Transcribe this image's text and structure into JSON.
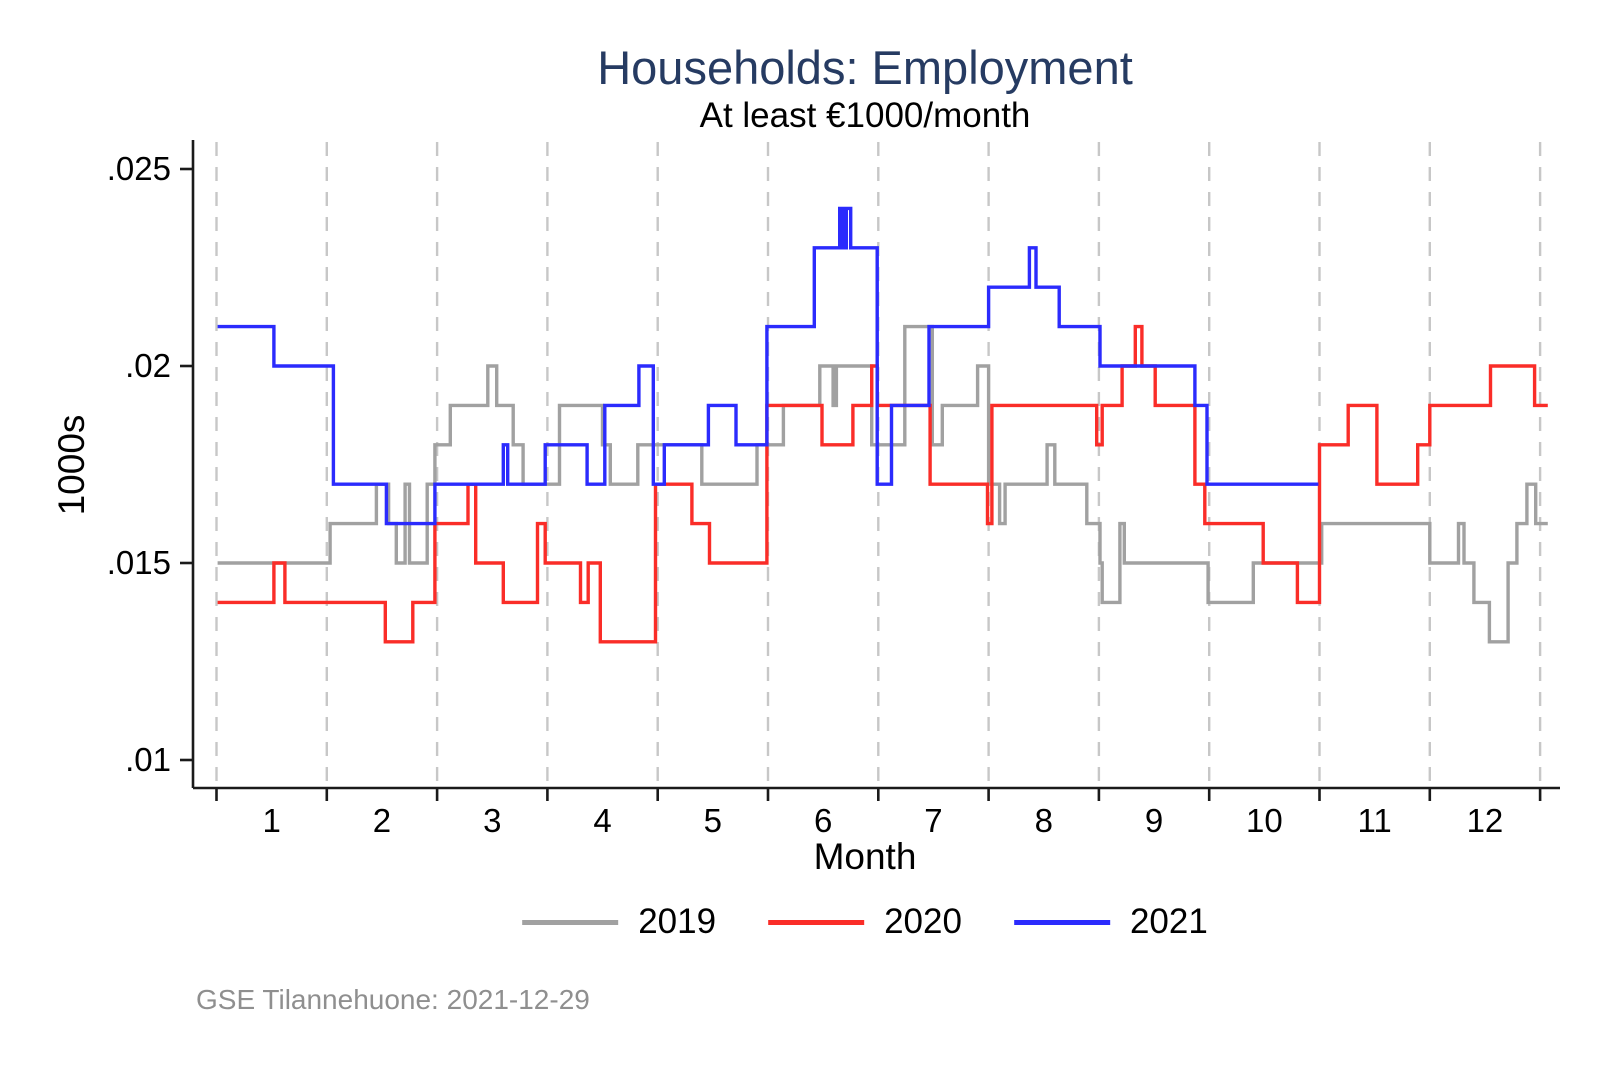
{
  "title": "Households: Employment",
  "subtitle": "At least €1000/month",
  "footer_note": "GSE Tilannehuone: 2021-12-29",
  "colors": {
    "title": "#263b62",
    "axis": "#1a1a1a",
    "gridline": "#c7c7c7",
    "footer": "#8f8f8f",
    "series_2019": "#a1a1a1",
    "series_2020": "#fa2d28",
    "series_2021": "#2b2bfd"
  },
  "legend": {
    "items": [
      {
        "label": "2019",
        "color": "#a1a1a1"
      },
      {
        "label": "2020",
        "color": "#fa2d28"
      },
      {
        "label": "2021",
        "color": "#2b2bfd"
      }
    ]
  },
  "chart_data": {
    "type": "line",
    "step": true,
    "title": "Households: Employment",
    "subtitle": "At least €1000/month",
    "xlabel": "Month",
    "ylabel": "1000s",
    "xlim": [
      0.28,
      12.75
    ],
    "ylim": [
      0.0095,
      0.0258
    ],
    "grid": "vertical-dashed",
    "legend_position": "bottom-center",
    "x_gridlines": [
      0.5,
      1.5,
      2.5,
      3.5,
      4.5,
      5.5,
      6.5,
      7.5,
      8.5,
      9.5,
      10.5,
      11.5,
      12.5
    ],
    "x_ticks": [
      1,
      2,
      3,
      4,
      5,
      6,
      7,
      8,
      9,
      10,
      11,
      12
    ],
    "y_ticks": [
      {
        "value": 0.01,
        "label": ".01"
      },
      {
        "value": 0.015,
        "label": ".015"
      },
      {
        "value": 0.02,
        "label": ".02"
      },
      {
        "value": 0.025,
        "label": ".025"
      }
    ],
    "series": [
      {
        "name": "2019",
        "color": "#a1a1a1",
        "x_end": 12.57,
        "steps": [
          [
            0.51,
            0.015
          ],
          [
            1.53,
            0.016
          ],
          [
            1.95,
            0.017
          ],
          [
            2.06,
            0.016
          ],
          [
            2.13,
            0.015
          ],
          [
            2.21,
            0.017
          ],
          [
            2.25,
            0.015
          ],
          [
            2.41,
            0.017
          ],
          [
            2.48,
            0.018
          ],
          [
            2.62,
            0.019
          ],
          [
            2.96,
            0.02
          ],
          [
            3.04,
            0.019
          ],
          [
            3.19,
            0.018
          ],
          [
            3.28,
            0.017
          ],
          [
            3.61,
            0.019
          ],
          [
            4.0,
            0.018
          ],
          [
            4.07,
            0.017
          ],
          [
            4.32,
            0.018
          ],
          [
            4.9,
            0.017
          ],
          [
            5.4,
            0.018
          ],
          [
            5.64,
            0.019
          ],
          [
            5.97,
            0.02
          ],
          [
            6.09,
            0.019
          ],
          [
            6.12,
            0.02
          ],
          [
            6.44,
            0.018
          ],
          [
            6.74,
            0.021
          ],
          [
            6.99,
            0.018
          ],
          [
            7.08,
            0.019
          ],
          [
            7.4,
            0.02
          ],
          [
            7.5,
            0.017
          ],
          [
            7.6,
            0.016
          ],
          [
            7.65,
            0.017
          ],
          [
            8.03,
            0.018
          ],
          [
            8.1,
            0.017
          ],
          [
            8.39,
            0.016
          ],
          [
            8.51,
            0.015
          ],
          [
            8.53,
            0.014
          ],
          [
            8.69,
            0.016
          ],
          [
            8.73,
            0.015
          ],
          [
            9.49,
            0.014
          ],
          [
            9.9,
            0.015
          ],
          [
            10.52,
            0.016
          ],
          [
            11.5,
            0.015
          ],
          [
            11.76,
            0.016
          ],
          [
            11.81,
            0.015
          ],
          [
            11.9,
            0.014
          ],
          [
            12.04,
            0.013
          ],
          [
            12.21,
            0.015
          ],
          [
            12.29,
            0.016
          ],
          [
            12.38,
            0.017
          ],
          [
            12.46,
            0.016
          ]
        ]
      },
      {
        "name": "2020",
        "color": "#fa2d28",
        "x_end": 12.57,
        "steps": [
          [
            0.51,
            0.014
          ],
          [
            1.02,
            0.015
          ],
          [
            1.12,
            0.014
          ],
          [
            2.03,
            0.013
          ],
          [
            2.28,
            0.014
          ],
          [
            2.48,
            0.016
          ],
          [
            2.78,
            0.017
          ],
          [
            2.85,
            0.015
          ],
          [
            3.1,
            0.014
          ],
          [
            3.41,
            0.016
          ],
          [
            3.48,
            0.015
          ],
          [
            3.8,
            0.014
          ],
          [
            3.87,
            0.015
          ],
          [
            3.98,
            0.013
          ],
          [
            4.48,
            0.017
          ],
          [
            4.81,
            0.016
          ],
          [
            4.97,
            0.015
          ],
          [
            5.49,
            0.019
          ],
          [
            5.99,
            0.018
          ],
          [
            6.27,
            0.019
          ],
          [
            6.44,
            0.02
          ],
          [
            6.49,
            0.019
          ],
          [
            6.97,
            0.017
          ],
          [
            7.49,
            0.016
          ],
          [
            7.53,
            0.019
          ],
          [
            8.48,
            0.018
          ],
          [
            8.53,
            0.019
          ],
          [
            8.71,
            0.02
          ],
          [
            8.83,
            0.021
          ],
          [
            8.89,
            0.02
          ],
          [
            9.01,
            0.019
          ],
          [
            9.37,
            0.017
          ],
          [
            9.46,
            0.016
          ],
          [
            9.99,
            0.015
          ],
          [
            10.3,
            0.014
          ],
          [
            10.5,
            0.018
          ],
          [
            10.76,
            0.019
          ],
          [
            11.02,
            0.017
          ],
          [
            11.39,
            0.018
          ],
          [
            11.5,
            0.019
          ],
          [
            12.05,
            0.02
          ],
          [
            12.45,
            0.019
          ]
        ]
      },
      {
        "name": "2021",
        "color": "#2b2bfd",
        "x_end": 10.49,
        "steps": [
          [
            0.51,
            0.021
          ],
          [
            1.02,
            0.02
          ],
          [
            1.56,
            0.017
          ],
          [
            2.04,
            0.016
          ],
          [
            2.48,
            0.017
          ],
          [
            3.1,
            0.018
          ],
          [
            3.14,
            0.017
          ],
          [
            3.48,
            0.018
          ],
          [
            3.86,
            0.017
          ],
          [
            4.02,
            0.019
          ],
          [
            4.33,
            0.02
          ],
          [
            4.46,
            0.017
          ],
          [
            4.56,
            0.018
          ],
          [
            4.96,
            0.019
          ],
          [
            5.21,
            0.018
          ],
          [
            5.49,
            0.021
          ],
          [
            5.92,
            0.023
          ],
          [
            6.15,
            0.024
          ],
          [
            6.18,
            0.023
          ],
          [
            6.21,
            0.024
          ],
          [
            6.25,
            0.023
          ],
          [
            6.49,
            0.017
          ],
          [
            6.62,
            0.019
          ],
          [
            6.96,
            0.021
          ],
          [
            7.5,
            0.022
          ],
          [
            7.87,
            0.023
          ],
          [
            7.93,
            0.022
          ],
          [
            8.14,
            0.021
          ],
          [
            8.51,
            0.02
          ],
          [
            9.37,
            0.019
          ],
          [
            9.48,
            0.017
          ]
        ]
      }
    ]
  }
}
